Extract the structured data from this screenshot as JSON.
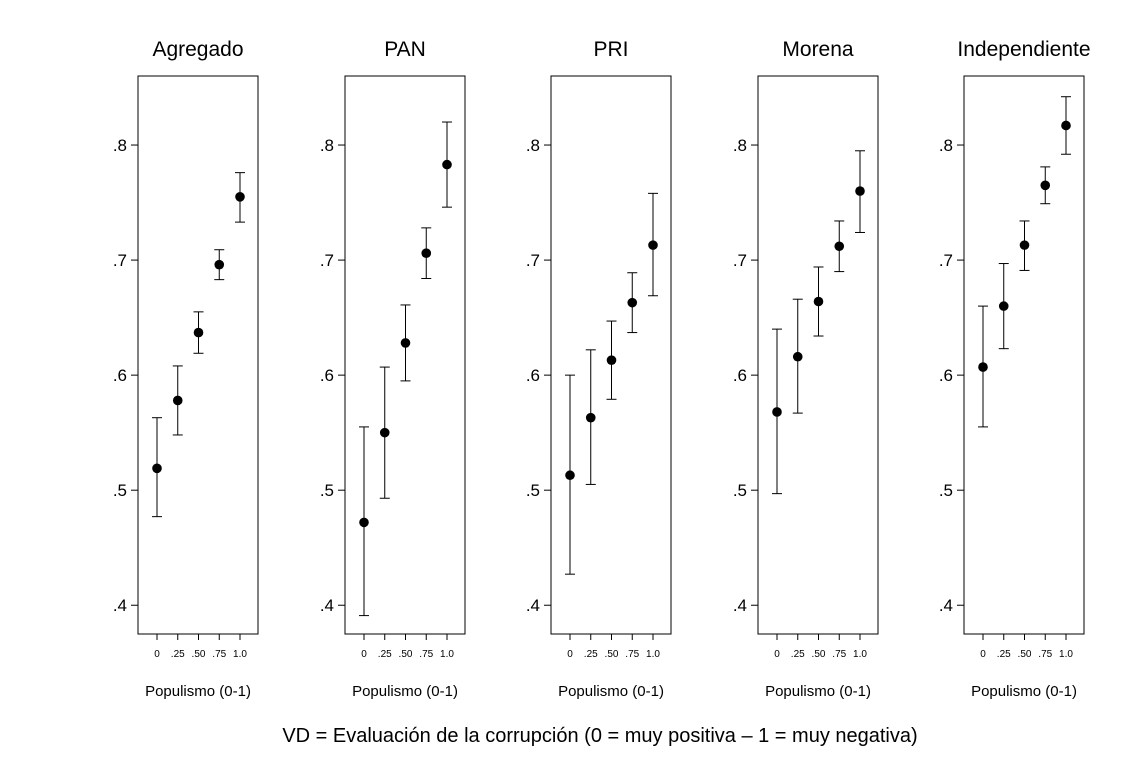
{
  "chart_data": [
    {
      "type": "scatter",
      "title": "Agregado",
      "xlabel": "Populismo (0-1)",
      "x": [
        0,
        0.25,
        0.5,
        0.75,
        1.0
      ],
      "xticks": [
        "0",
        ".25",
        ".50",
        ".75",
        "1.0"
      ],
      "yticks": [
        ".4",
        ".5",
        ".6",
        ".7",
        ".8"
      ],
      "ylim": [
        0.375,
        0.86
      ],
      "values": [
        0.519,
        0.578,
        0.637,
        0.696,
        0.755
      ],
      "ci_low": [
        0.477,
        0.548,
        0.619,
        0.683,
        0.733
      ],
      "ci_high": [
        0.563,
        0.608,
        0.655,
        0.709,
        0.776
      ]
    },
    {
      "type": "scatter",
      "title": "PAN",
      "xlabel": "Populismo (0-1)",
      "x": [
        0,
        0.25,
        0.5,
        0.75,
        1.0
      ],
      "xticks": [
        "0",
        ".25",
        ".50",
        ".75",
        "1.0"
      ],
      "yticks": [
        ".4",
        ".5",
        ".6",
        ".7",
        ".8"
      ],
      "ylim": [
        0.375,
        0.86
      ],
      "values": [
        0.472,
        0.55,
        0.628,
        0.706,
        0.783
      ],
      "ci_low": [
        0.391,
        0.493,
        0.595,
        0.684,
        0.746
      ],
      "ci_high": [
        0.555,
        0.607,
        0.661,
        0.728,
        0.82
      ]
    },
    {
      "type": "scatter",
      "title": "PRI",
      "xlabel": "Populismo (0-1)",
      "x": [
        0,
        0.25,
        0.5,
        0.75,
        1.0
      ],
      "xticks": [
        "0",
        ".25",
        ".50",
        ".75",
        "1.0"
      ],
      "yticks": [
        ".4",
        ".5",
        ".6",
        ".7",
        ".8"
      ],
      "ylim": [
        0.375,
        0.86
      ],
      "values": [
        0.513,
        0.563,
        0.613,
        0.663,
        0.713
      ],
      "ci_low": [
        0.427,
        0.505,
        0.579,
        0.637,
        0.669
      ],
      "ci_high": [
        0.6,
        0.622,
        0.647,
        0.689,
        0.758
      ]
    },
    {
      "type": "scatter",
      "title": "Morena",
      "xlabel": "Populismo (0-1)",
      "x": [
        0,
        0.25,
        0.5,
        0.75,
        1.0
      ],
      "xticks": [
        "0",
        ".25",
        ".50",
        ".75",
        "1.0"
      ],
      "yticks": [
        ".4",
        ".5",
        ".6",
        ".7",
        ".8"
      ],
      "ylim": [
        0.375,
        0.86
      ],
      "values": [
        0.568,
        0.616,
        0.664,
        0.712,
        0.76
      ],
      "ci_low": [
        0.497,
        0.567,
        0.634,
        0.69,
        0.724
      ],
      "ci_high": [
        0.64,
        0.666,
        0.694,
        0.734,
        0.795
      ]
    },
    {
      "type": "scatter",
      "title": "Independiente",
      "xlabel": "Populismo (0-1)",
      "x": [
        0,
        0.25,
        0.5,
        0.75,
        1.0
      ],
      "xticks": [
        "0",
        ".25",
        ".50",
        ".75",
        "1.0"
      ],
      "yticks": [
        ".4",
        ".5",
        ".6",
        ".7",
        ".8"
      ],
      "ylim": [
        0.375,
        0.86
      ],
      "values": [
        0.607,
        0.66,
        0.713,
        0.765,
        0.817
      ],
      "ci_low": [
        0.555,
        0.623,
        0.691,
        0.749,
        0.792
      ],
      "ci_high": [
        0.66,
        0.697,
        0.734,
        0.781,
        0.842
      ]
    }
  ],
  "caption": "VD = Evaluación de la corrupción (0 = muy positiva – 1 = muy negativa)"
}
